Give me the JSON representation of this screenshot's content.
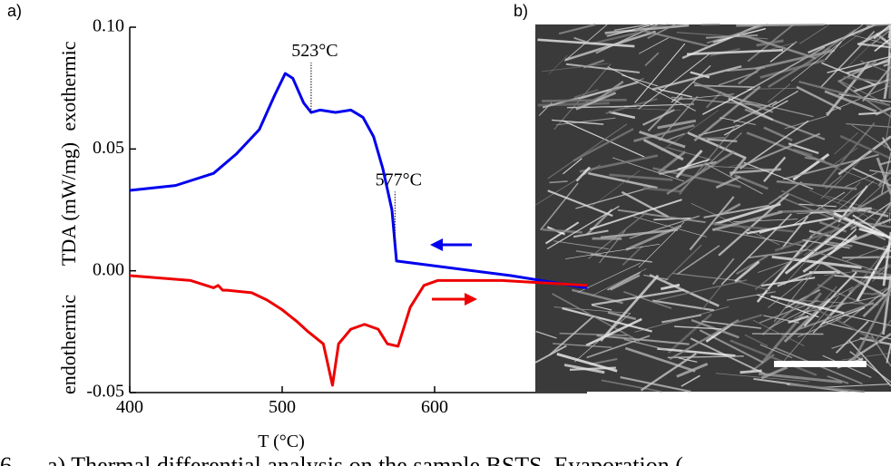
{
  "panel_labels": [
    "a)",
    "b)"
  ],
  "chart_data": {
    "type": "line",
    "y_label": "TDA (mW/mg)",
    "y_label_top": "exothermic",
    "y_label_bottom": "endothermic",
    "x_label": "T (°C)",
    "xlim": [
      400,
      700
    ],
    "xticks": [
      400,
      500,
      600
    ],
    "ylim": [
      -0.05,
      0.1
    ],
    "yticks": [
      {
        "value": -0.05,
        "label": "-0.05"
      },
      {
        "value": 0,
        "label": "0.00"
      },
      {
        "value": 0.05,
        "label": "0.05"
      },
      {
        "value": 0.1,
        "label": "0.10"
      }
    ],
    "series": [
      {
        "color": "#0000ee",
        "x": [
          400,
          430,
          455,
          470,
          485,
          495,
          502,
          507,
          514,
          519,
          525,
          535,
          545,
          553,
          560,
          566,
          572,
          575,
          600,
          650,
          700
        ],
        "values": [
          0.033,
          0.035,
          0.04,
          0.048,
          0.058,
          0.072,
          0.081,
          0.079,
          0.069,
          0.065,
          0.066,
          0.065,
          0.066,
          0.063,
          0.055,
          0.042,
          0.025,
          0.004,
          0.002,
          -0.002,
          -0.007
        ]
      },
      {
        "color": "#ee0000",
        "x": [
          400,
          440,
          455,
          458,
          461,
          464,
          480,
          490,
          500,
          510,
          517,
          527,
          533,
          537,
          545,
          554,
          563,
          569,
          576,
          584,
          593,
          602,
          644,
          700
        ],
        "values": [
          -0.002,
          -0.004,
          -0.007,
          -0.006,
          -0.008,
          -0.008,
          -0.009,
          -0.012,
          -0.016,
          -0.021,
          -0.025,
          -0.03,
          -0.047,
          -0.03,
          -0.024,
          -0.022,
          -0.024,
          -0.03,
          -0.031,
          -0.015,
          -0.006,
          -0.004,
          -0.004,
          -0.006
        ]
      }
    ],
    "annotations": [
      {
        "text": "523°C",
        "x": 519,
        "y": 0.065
      },
      {
        "text": "577°C",
        "x": 574,
        "y": 0.012
      }
    ]
  },
  "caption": "6 — a) Thermal differential analysis on the sample BSTS. Evaporation ("
}
